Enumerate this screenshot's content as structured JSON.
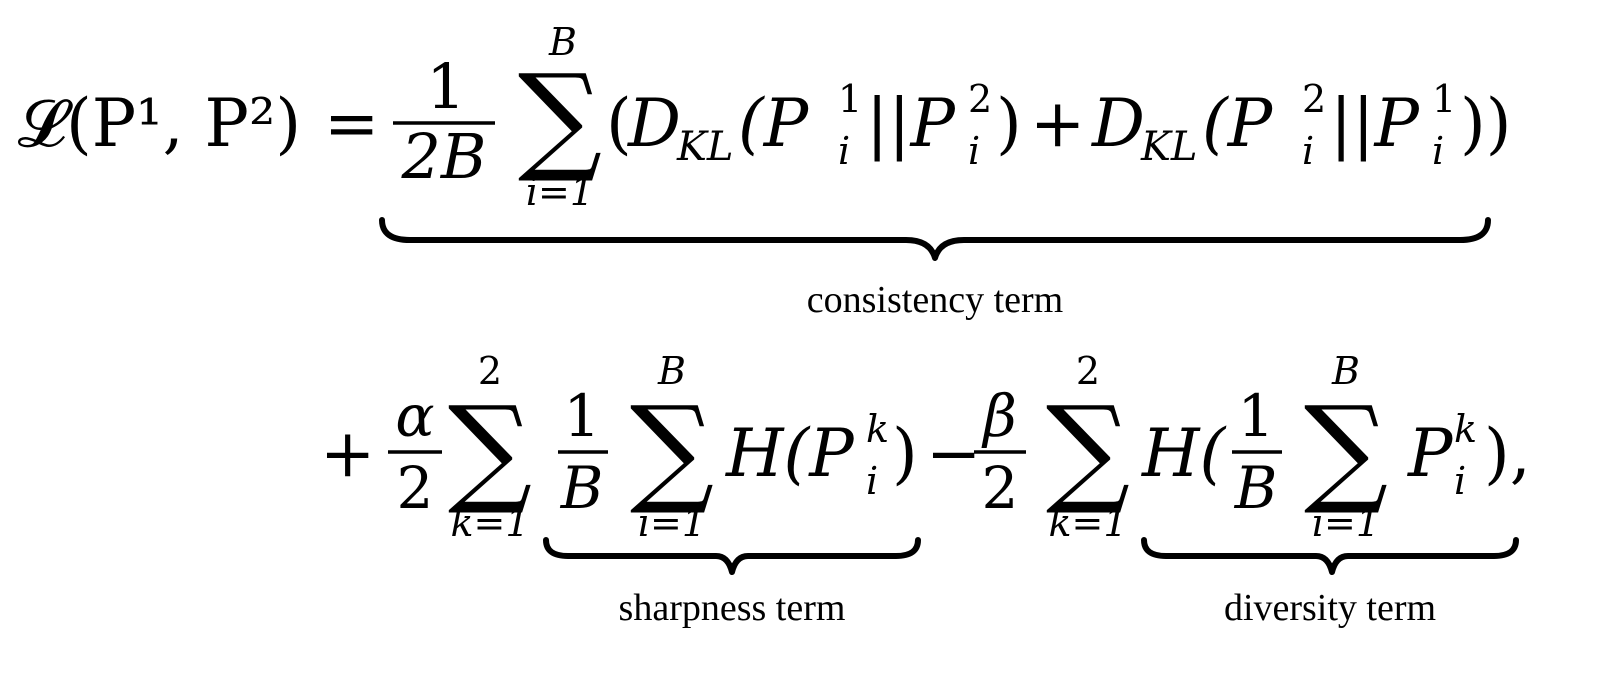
{
  "equation": {
    "line1": {
      "lhs": "𝓛(P¹, P²)",
      "equals": "=",
      "frac_num": "1",
      "frac_den": "2B",
      "sum_upper": "B",
      "sum_lower": "i=1",
      "body_open": "(",
      "kl1_name": "D",
      "kl1_sub": "KL",
      "kl1_arg": "(P",
      "kl1_sup1": "1",
      "kl1_sub1": "i",
      "kl1_sep": "||P",
      "kl1_sup2": "2",
      "kl1_sub2": "i",
      "kl1_close": ")",
      "plus": "+",
      "kl2_name": "D",
      "kl2_sub": "KL",
      "kl2_arg": "(P",
      "kl2_sup1": "2",
      "kl2_sub1": "i",
      "kl2_sep": "||P",
      "kl2_sup2": "1",
      "kl2_sub2": "i",
      "kl2_close": "))",
      "brace_label": "consistency term"
    },
    "line2": {
      "plus": "+",
      "alpha_num": "α",
      "alpha_den": "2",
      "sum1_upper": "2",
      "sum1_lower": "k=1",
      "inner_num": "1",
      "inner_den": "B",
      "sum2_upper": "B",
      "sum2_lower": "i=1",
      "entropy1": "H(P",
      "entropy1_sup": "k",
      "entropy1_sub": "i",
      "entropy1_close": ")",
      "sharpness_label": "sharpness term",
      "minus": "−",
      "beta_num": "β",
      "beta_den": "2",
      "sum3_upper": "2",
      "sum3_lower": "k=1",
      "entropy2_open": "H(",
      "inner2_num": "1",
      "inner2_den": "B",
      "sum4_upper": "B",
      "sum4_lower": "i=1",
      "entropy2_p": "P",
      "entropy2_sup": "k",
      "entropy2_sub": "i",
      "entropy2_close": "),",
      "diversity_label": "diversity term"
    }
  }
}
